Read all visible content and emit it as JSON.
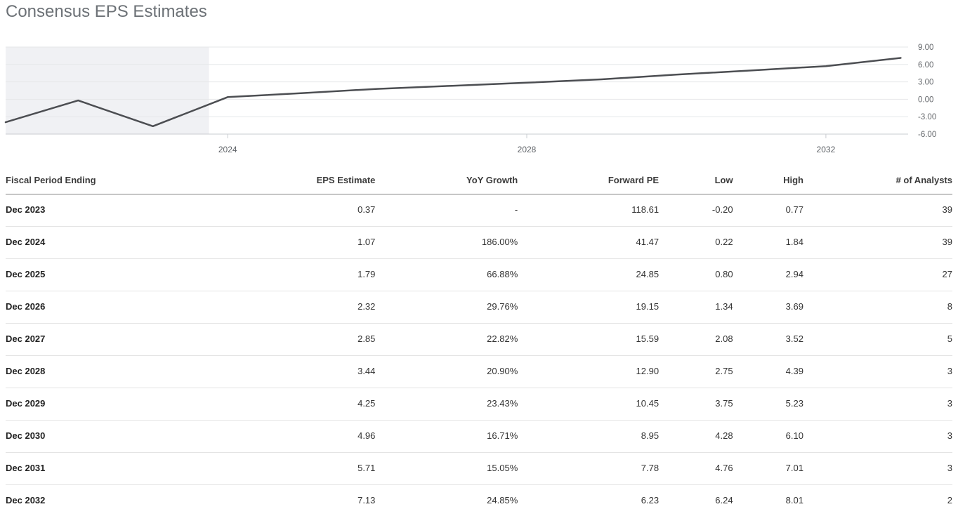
{
  "page": {
    "title": "Consensus EPS Estimates"
  },
  "colors": {
    "line": "#4c4e52",
    "shaded_region": "#f0f1f4",
    "grid": "#e6e7e9",
    "axis": "#c9ccd0",
    "x_tick_text": "#5f6368",
    "y_tick_text": "#66696d",
    "title_text": "#6c7176"
  },
  "chart_data": {
    "type": "line",
    "title": "Consensus EPS Estimates",
    "xlabel": "",
    "ylabel": "",
    "grid": true,
    "legend": false,
    "x_axis": {
      "range": [
        2021.03,
        2033.1
      ],
      "ticks": [
        2024,
        2028,
        2032
      ],
      "tick_labels": [
        "2024",
        "2028",
        "2032"
      ]
    },
    "y_axis": {
      "range": [
        -6,
        9
      ],
      "ticks": [
        9,
        6,
        3,
        0,
        -3,
        -6
      ],
      "tick_labels": [
        "9.00",
        "6.00",
        "3.00",
        "0.00",
        "-3.00",
        "-6.00"
      ],
      "side": "right"
    },
    "shaded_region_x": [
      2021.03,
      2023.75
    ],
    "series": [
      {
        "name": "EPS",
        "points": [
          {
            "x": 2021.03,
            "y": -3.95
          },
          {
            "x": 2022,
            "y": -0.2
          },
          {
            "x": 2023,
            "y": -4.65
          },
          {
            "x": 2024,
            "y": 0.37
          },
          {
            "x": 2025,
            "y": 1.07
          },
          {
            "x": 2026,
            "y": 1.79
          },
          {
            "x": 2027,
            "y": 2.32
          },
          {
            "x": 2028,
            "y": 2.85
          },
          {
            "x": 2029,
            "y": 3.44
          },
          {
            "x": 2030,
            "y": 4.25
          },
          {
            "x": 2031,
            "y": 4.96
          },
          {
            "x": 2032,
            "y": 5.71
          },
          {
            "x": 2033,
            "y": 7.13
          }
        ]
      }
    ]
  },
  "table": {
    "headers": [
      "Fiscal Period Ending",
      "EPS Estimate",
      "YoY Growth",
      "Forward PE",
      "Low",
      "High",
      "# of Analysts"
    ],
    "rows": [
      [
        "Dec 2023",
        "0.37",
        "-",
        "118.61",
        "-0.20",
        "0.77",
        "39"
      ],
      [
        "Dec 2024",
        "1.07",
        "186.00%",
        "41.47",
        "0.22",
        "1.84",
        "39"
      ],
      [
        "Dec 2025",
        "1.79",
        "66.88%",
        "24.85",
        "0.80",
        "2.94",
        "27"
      ],
      [
        "Dec 2026",
        "2.32",
        "29.76%",
        "19.15",
        "1.34",
        "3.69",
        "8"
      ],
      [
        "Dec 2027",
        "2.85",
        "22.82%",
        "15.59",
        "2.08",
        "3.52",
        "5"
      ],
      [
        "Dec 2028",
        "3.44",
        "20.90%",
        "12.90",
        "2.75",
        "4.39",
        "3"
      ],
      [
        "Dec 2029",
        "4.25",
        "23.43%",
        "10.45",
        "3.75",
        "5.23",
        "3"
      ],
      [
        "Dec 2030",
        "4.96",
        "16.71%",
        "8.95",
        "4.28",
        "6.10",
        "3"
      ],
      [
        "Dec 2031",
        "5.71",
        "15.05%",
        "7.78",
        "4.76",
        "7.01",
        "3"
      ],
      [
        "Dec 2032",
        "7.13",
        "24.85%",
        "6.23",
        "6.24",
        "8.01",
        "2"
      ]
    ]
  }
}
